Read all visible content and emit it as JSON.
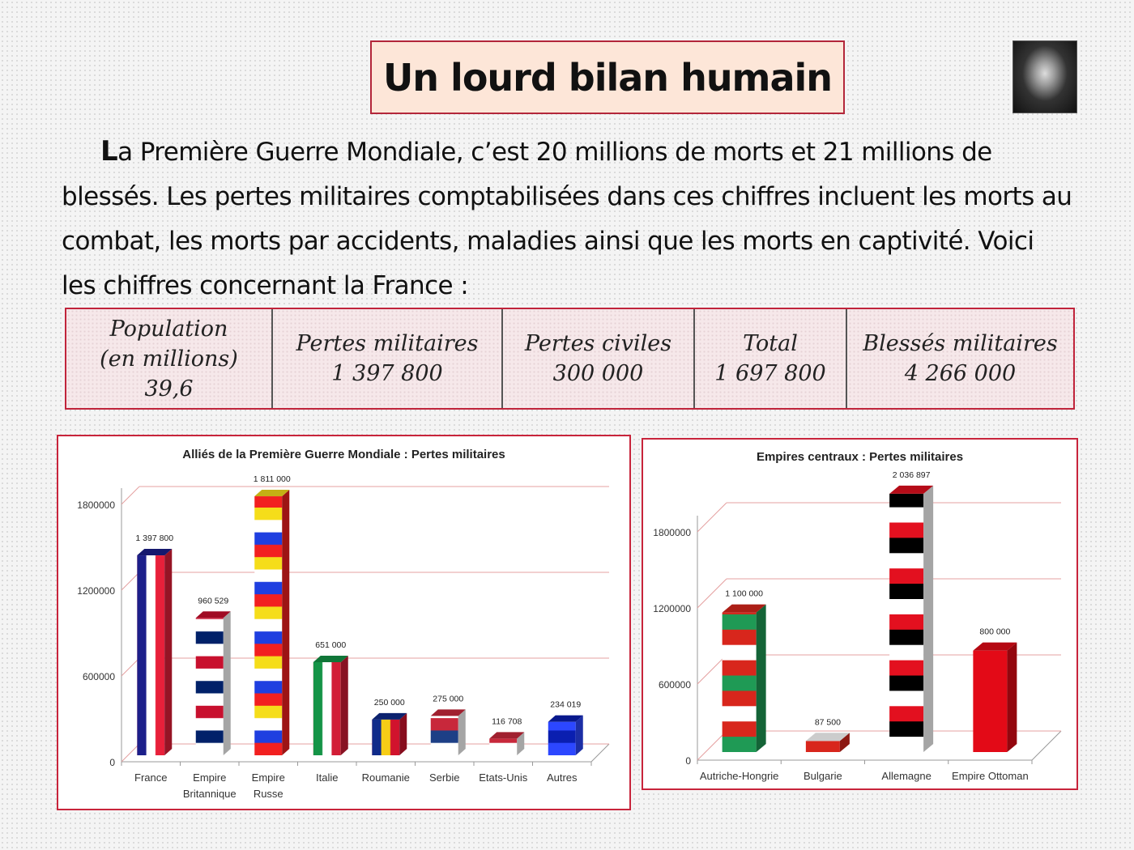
{
  "title": "Un lourd bilan humain",
  "intro": {
    "lead_letter": "L",
    "text": "a Première Guerre Mondiale, c’est 20 millions de morts et 21 millions de blessés. Les pertes militaires comptabilisées dans ces chiffres incluent les morts au combat, les morts par accidents, maladies ainsi que les morts en captivité.   Voici les chiffres concernant la France :"
  },
  "stats": [
    {
      "label": "Population",
      "label2": "(en millions)",
      "value": "39,6"
    },
    {
      "label": "Pertes militaires",
      "value": "1 397 800"
    },
    {
      "label": "Pertes civiles",
      "value": "300 000"
    },
    {
      "label": "Total",
      "value": "1 697 800"
    },
    {
      "label": "Blessés militaires",
      "value": "4 266 000"
    }
  ],
  "chart_data": [
    {
      "type": "bar",
      "title": "Alliés de la Première Guerre Mondiale : Pertes militaires",
      "categories": [
        [
          "France"
        ],
        [
          "Empire",
          "Britannique"
        ],
        [
          "Empire",
          "Russe"
        ],
        [
          "Italie"
        ],
        [
          "Roumanie"
        ],
        [
          "Serbie"
        ],
        [
          "Etats-Unis"
        ],
        [
          "Autres"
        ]
      ],
      "values": [
        1397800,
        960529,
        1811000,
        651000,
        250000,
        275000,
        116708,
        234019
      ],
      "data_labels": [
        "1 397 800",
        "960 529",
        "1 811 000",
        "651 000",
        "250 000",
        "275 000",
        "116 708",
        "234 019"
      ],
      "yticks": [
        "0",
        "600000",
        "1200000",
        "1800000"
      ],
      "ylim": [
        0,
        1800000
      ],
      "grid": true,
      "fills": [
        {
          "dir": "v",
          "colors": [
            "#1b1f8a",
            "#ffffff",
            "#e8203a"
          ]
        },
        {
          "dir": "h",
          "colors": [
            "#c8102e",
            "#ffffff",
            "#012169",
            "#ffffff"
          ]
        },
        {
          "dir": "h",
          "colors": [
            "#f5dd1a",
            "#ffffff",
            "#1f3fe0",
            "#f22020"
          ]
        },
        {
          "dir": "v",
          "colors": [
            "#159447",
            "#ffffff",
            "#d21d36"
          ]
        },
        {
          "dir": "v",
          "colors": [
            "#102b8a",
            "#f6cd16",
            "#d1132d"
          ]
        },
        {
          "dir": "h",
          "colors": [
            "#c8283b",
            "#1d3f86",
            "#ffffff"
          ]
        },
        {
          "dir": "h",
          "colors": [
            "#c8283b",
            "#ffffff"
          ]
        },
        {
          "dir": "h",
          "colors": [
            "#0a1fb0",
            "#2c47ff"
          ]
        }
      ]
    },
    {
      "type": "bar",
      "title": "Empires centraux : Pertes militaires",
      "categories": [
        [
          "Autriche-Hongrie"
        ],
        [
          "Bulgarie"
        ],
        [
          "Allemagne"
        ],
        [
          "Empire Ottoman"
        ]
      ],
      "values": [
        1100000,
        87500,
        2036897,
        800000
      ],
      "data_labels": [
        "1 100 000",
        "87 500",
        "2 036 897",
        "800 000"
      ],
      "yticks": [
        "0",
        "600000",
        "1200000",
        "1800000"
      ],
      "ylim": [
        0,
        1800000
      ],
      "grid": true,
      "fills": [
        {
          "dir": "h",
          "colors": [
            "#d8261c",
            "#ffffff",
            "#d8261c",
            "#1f9a55"
          ]
        },
        {
          "dir": "h",
          "colors": [
            "#ffffff",
            "#1d8a50",
            "#d8261c"
          ]
        },
        {
          "dir": "h",
          "colors": [
            "#e3101f",
            "#000000",
            "#ffffff"
          ]
        },
        {
          "dir": "h",
          "colors": [
            "#e30a17",
            "#e30a17"
          ]
        }
      ]
    }
  ]
}
